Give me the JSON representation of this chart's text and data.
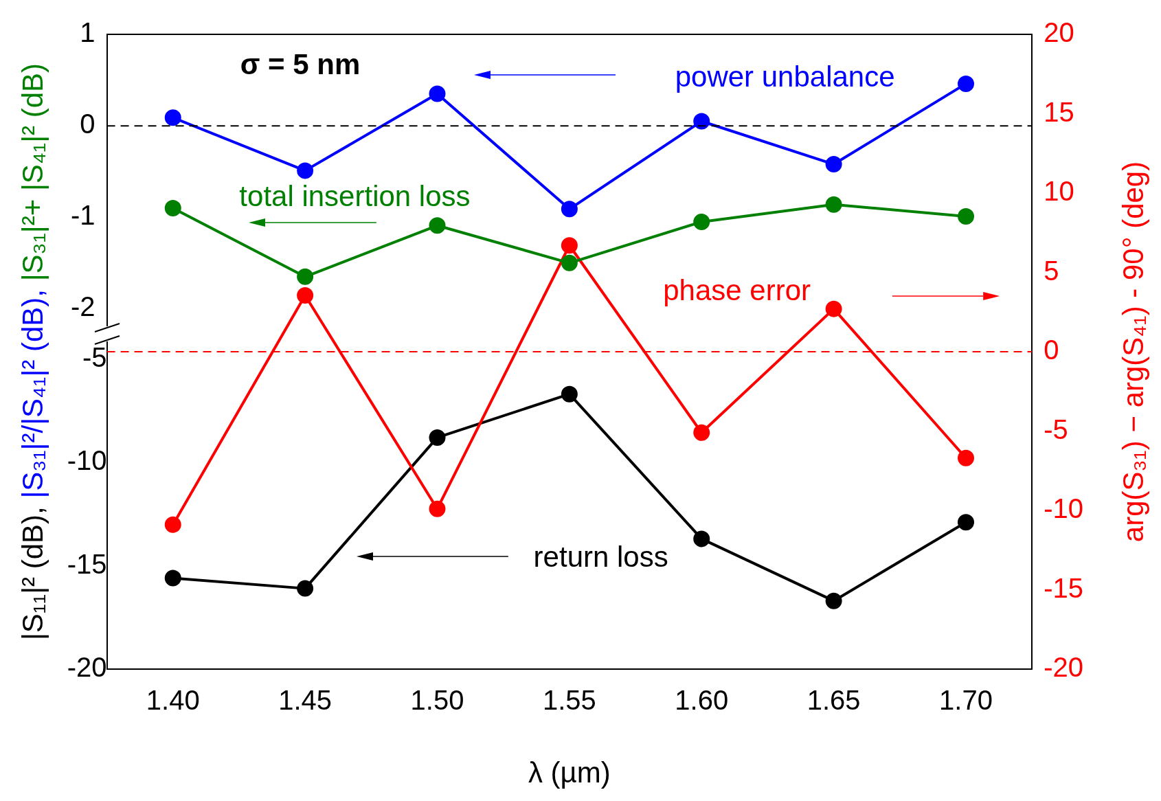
{
  "chart_data": {
    "type": "line",
    "xlabel": "λ (µm)",
    "ylabel": "|S₁₁|² (dB),  |S₃₁|²/|S₄₁|² (dB), |S₃₁|²+ |S₄₁|² (dB)",
    "y2label": "arg(S₃₁) − arg(S₄₁) - 90° (deg)",
    "x": [
      1.4,
      1.45,
      1.5,
      1.55,
      1.6,
      1.65,
      1.7
    ],
    "xlim": [
      1.375,
      1.725
    ],
    "xticks": [
      {
        "value": 1.4,
        "label": "1.40"
      },
      {
        "value": 1.45,
        "label": "1.45"
      },
      {
        "value": 1.5,
        "label": "1.50"
      },
      {
        "value": 1.55,
        "label": "1.55"
      },
      {
        "value": 1.6,
        "label": "1.60"
      },
      {
        "value": 1.65,
        "label": "1.65"
      },
      {
        "value": 1.7,
        "label": "1.70"
      }
    ],
    "ylim": [
      -5.94,
      1
    ],
    "yticks": [
      -2,
      -1,
      0,
      1
    ],
    "y3lim": [
      -20,
      10.7
    ],
    "y3ticks": [
      -20,
      -15,
      -10,
      -5
    ],
    "y2lim": [
      -20,
      20
    ],
    "y2ticks": [
      -20,
      -15,
      -10,
      -5,
      0,
      5,
      10,
      15,
      20
    ],
    "series": [
      {
        "color": "#0000ff",
        "values": [
          0.09,
          -0.49,
          0.35,
          -0.91,
          0.05,
          -0.42,
          0.46
        ]
      },
      {
        "color": "#008000",
        "values": [
          -0.9,
          -1.65,
          -1.09,
          -1.5,
          -1.05,
          -0.86,
          -0.99
        ]
      },
      {
        "color": "#ff0000",
        "axis": "y2",
        "values": [
          -10.9,
          3.55,
          -9.9,
          6.7,
          -5.1,
          2.7,
          -6.7
        ]
      },
      {
        "color": "#000000",
        "axis": "y3",
        "values": [
          -15.6,
          -16.1,
          -8.8,
          -6.7,
          -13.7,
          -16.7,
          -12.9
        ]
      }
    ],
    "ref_lines": [
      {
        "axis": "y",
        "value": 0,
        "color": "#000000",
        "line_style": "dashed"
      },
      {
        "axis": "y2",
        "value": 0,
        "color": "#ff0000",
        "line_style": "dashed"
      }
    ],
    "annotations": [
      "σ = 5 nm",
      "power unbalance",
      "total insertion loss",
      "phase error",
      "return loss"
    ],
    "marker": "circle",
    "line_style": "solid",
    "grid": false,
    "legend": false
  }
}
